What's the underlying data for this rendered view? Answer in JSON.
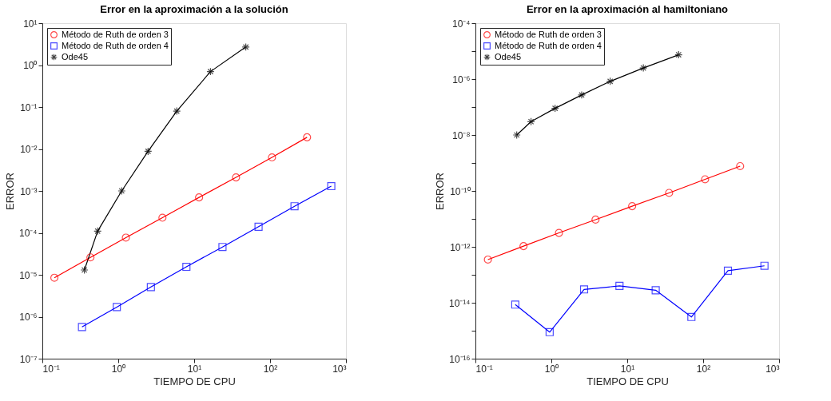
{
  "chart_data": [
    {
      "type": "line",
      "title": "Error en la aproximación a la solución",
      "xlabel": "TIEMPO DE CPU",
      "ylabel": "ERROR",
      "log": "xy",
      "grid": false,
      "legend": "top left",
      "line_style": "solid",
      "xlim": [
        0.1,
        1000
      ],
      "xticks": [
        {
          "value": 0.1,
          "label": "10⁻¹"
        },
        {
          "value": 1,
          "label": "10⁰"
        },
        {
          "value": 10,
          "label": "10¹"
        },
        {
          "value": 100,
          "label": "10²"
        },
        {
          "value": 1000,
          "label": "10³"
        }
      ],
      "ylim": [
        1e-07,
        10
      ],
      "yticks": [
        {
          "value": 1e-07,
          "label": "10⁻⁷"
        },
        {
          "value": 1e-06,
          "label": "10⁻⁶"
        },
        {
          "value": 1e-05,
          "label": "10⁻⁵"
        },
        {
          "value": 0.0001,
          "label": "10⁻⁴"
        },
        {
          "value": 0.001,
          "label": "10⁻³"
        },
        {
          "value": 0.01,
          "label": "10⁻²"
        },
        {
          "value": 0.1,
          "label": "10⁻¹"
        },
        {
          "value": 1,
          "label": "10⁰"
        },
        {
          "value": 10,
          "label": "10¹"
        }
      ],
      "series": [
        {
          "name": "Método de Ruth de orden 3",
          "color": "#ff0000",
          "marker": "circle",
          "x": [
            0.144,
            0.43,
            1.26,
            3.82,
            11.6,
            35.6,
            106,
            307
          ],
          "values": [
            8.5e-06,
            2.6e-05,
            7.7e-05,
            0.00023,
            0.0007,
            0.0021,
            0.0063,
            0.019
          ]
        },
        {
          "name": "Método de Ruth de orden 4",
          "color": "#0000ff",
          "marker": "square",
          "x": [
            0.333,
            0.957,
            2.69,
            7.9,
            23.6,
            70.5,
            210,
            640
          ],
          "values": [
            5.7e-07,
            1.7e-06,
            5.1e-06,
            1.55e-05,
            4.6e-05,
            0.00014,
            0.00043,
            0.0013
          ]
        },
        {
          "name": "Ode45",
          "color": "#000000",
          "marker": "cross",
          "x": [
            0.358,
            0.535,
            1.11,
            2.47,
            5.9,
            16.4,
            47.9
          ],
          "values": [
            1.3e-05,
            0.00011,
            0.001,
            0.0088,
            0.08,
            0.7,
            2.7
          ]
        }
      ]
    },
    {
      "type": "line",
      "title": "Error en la aproximación al hamiltoniano",
      "xlabel": "TIEMPO DE CPU",
      "ylabel": "ERROR",
      "log": "xy",
      "grid": false,
      "legend": "top left",
      "line_style": "solid",
      "xlim": [
        0.1,
        1000
      ],
      "xticks": [
        {
          "value": 0.1,
          "label": "10⁻¹"
        },
        {
          "value": 1,
          "label": "10⁰"
        },
        {
          "value": 10,
          "label": "10¹"
        },
        {
          "value": 100,
          "label": "10²"
        },
        {
          "value": 1000,
          "label": "10³"
        }
      ],
      "ylim": [
        1e-16,
        0.0001
      ],
      "yticks": [
        {
          "value": 1e-16,
          "label": "10⁻¹⁶"
        },
        {
          "value": 1e-15,
          "label": null
        },
        {
          "value": 1e-14,
          "label": "10⁻¹⁴"
        },
        {
          "value": 1e-13,
          "label": null
        },
        {
          "value": 1e-12,
          "label": "10⁻¹²"
        },
        {
          "value": 1e-11,
          "label": null
        },
        {
          "value": 1e-10,
          "label": "10⁻¹⁰"
        },
        {
          "value": 1e-09,
          "label": null
        },
        {
          "value": 1e-08,
          "label": "10⁻⁸"
        },
        {
          "value": 1e-07,
          "label": null
        },
        {
          "value": 1e-06,
          "label": "10⁻⁶"
        },
        {
          "value": 1e-05,
          "label": null
        },
        {
          "value": 0.0001,
          "label": "10⁻⁴"
        }
      ],
      "series": [
        {
          "name": "Método de Ruth de orden 3",
          "color": "#ff0000",
          "marker": "circle",
          "x": [
            0.146,
            0.43,
            1.26,
            3.82,
            11.6,
            35.6,
            106,
            307
          ],
          "values": [
            3.5e-13,
            1.06e-12,
            3.15e-12,
            9.4e-12,
            2.85e-11,
            8.5e-11,
            2.6e-10,
            7.7e-10
          ]
        },
        {
          "name": "Método de Ruth de orden 4",
          "color": "#0000ff",
          "marker": "square",
          "x": [
            0.335,
            0.95,
            2.7,
            7.9,
            23.7,
            70,
            212,
            642
          ],
          "values": [
            8.6e-15,
            8.9e-16,
            3e-14,
            4e-14,
            2.8e-14,
            3.1e-15,
            1.4e-13,
            2.1e-13
          ]
        },
        {
          "name": "Ode45",
          "color": "#000000",
          "marker": "cross",
          "x": [
            0.35,
            0.54,
            1.12,
            2.51,
            5.96,
            16.3,
            47.5
          ],
          "values": [
            1e-08,
            3e-08,
            9e-08,
            2.7e-07,
            8.3e-07,
            2.5e-06,
            7.4e-06
          ]
        }
      ]
    }
  ]
}
